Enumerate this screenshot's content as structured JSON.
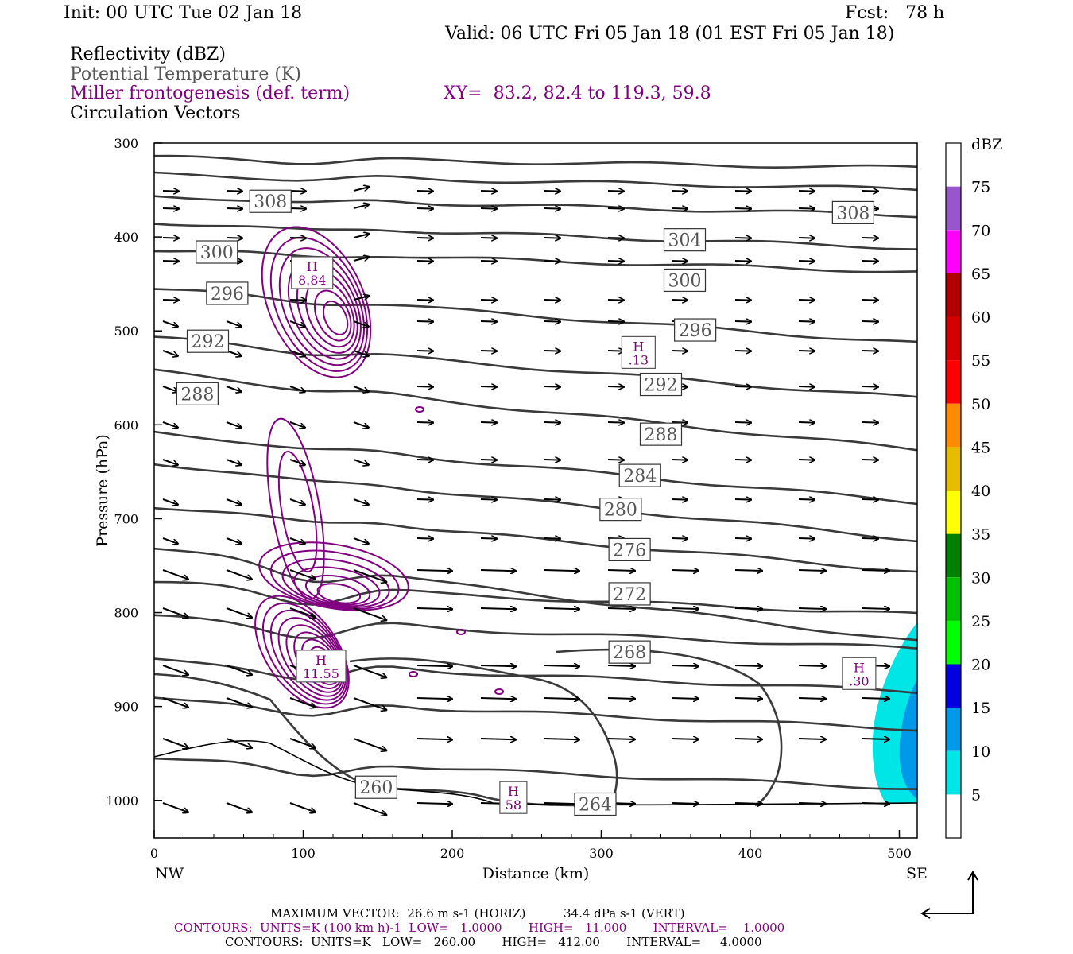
{
  "header": {
    "init": "Init: 00 UTC Tue 02 Jan 18",
    "fcst": "Fcst:   78 h",
    "valid": "Valid: 06 UTC Fri 05 Jan 18 (01 EST Fri 05 Jan 18)",
    "field1": "Reflectivity (dBZ)",
    "field2": "Potential Temperature (K)",
    "field3": "Miller frontogenesis (def. term)",
    "xy": "XY=  83.2, 82.4 to 119.3, 59.8",
    "field4": "Circulation Vectors"
  },
  "colors": {
    "theta": "#3a3a3a",
    "frontogenesis": "#800080",
    "vectors": "#000000"
  },
  "chart_data": {
    "type": "cross-section",
    "xlabel": "Distance (km)",
    "ylabel": "Pressure (hPa)",
    "xlim": [
      0,
      512
    ],
    "ylim": [
      1040,
      300
    ],
    "x_ticks": [
      0,
      100,
      200,
      300,
      400,
      500
    ],
    "y_ticks": [
      300,
      400,
      500,
      600,
      700,
      800,
      900,
      1000
    ],
    "x_end_labels": {
      "left": "NW",
      "right": "SE"
    },
    "theta_labels": [
      {
        "label": "308",
        "x": 78,
        "p": 362
      },
      {
        "label": "308",
        "x": 469,
        "p": 374
      },
      {
        "label": "304",
        "x": 356,
        "p": 403
      },
      {
        "label": "300",
        "x": 42,
        "p": 416
      },
      {
        "label": "300",
        "x": 356,
        "p": 446
      },
      {
        "label": "296",
        "x": 49,
        "p": 460
      },
      {
        "label": "296",
        "x": 363,
        "p": 499
      },
      {
        "label": "292",
        "x": 36,
        "p": 511
      },
      {
        "label": "292",
        "x": 340,
        "p": 557
      },
      {
        "label": "288",
        "x": 29,
        "p": 567
      },
      {
        "label": "288",
        "x": 340,
        "p": 610
      },
      {
        "label": "284",
        "x": 326,
        "p": 654
      },
      {
        "label": "280",
        "x": 313,
        "p": 690
      },
      {
        "label": "276",
        "x": 319,
        "p": 733
      },
      {
        "label": "272",
        "x": 319,
        "p": 780
      },
      {
        "label": "268",
        "x": 319,
        "p": 842
      },
      {
        "label": "264",
        "x": 296,
        "p": 1004
      },
      {
        "label": "260",
        "x": 149,
        "p": 986
      }
    ],
    "highs": [
      {
        "symbol": "H",
        "value": "8.84",
        "x": 106,
        "p": 438
      },
      {
        "symbol": "H",
        "value": ".13",
        "x": 325,
        "p": 523
      },
      {
        "symbol": "H",
        "value": "11.55",
        "x": 112,
        "p": 857
      },
      {
        "symbol": "H",
        "value": ".30",
        "x": 473,
        "p": 865
      },
      {
        "symbol": "H",
        "value": "58",
        "x": 241,
        "p": 997
      }
    ],
    "colorbar": {
      "unit": "dBZ",
      "levels": [
        5,
        10,
        15,
        20,
        25,
        30,
        35,
        40,
        45,
        50,
        55,
        60,
        65,
        70,
        75
      ],
      "colors": [
        "#ffffff",
        "#00e5e5",
        "#0098e8",
        "#0000e0",
        "#00ff00",
        "#00c000",
        "#008000",
        "#ffff00",
        "#e5bc00",
        "#ff8c00",
        "#ff0000",
        "#d40000",
        "#b00000",
        "#ff00ff",
        "#9955cc",
        "#ffffff"
      ]
    }
  },
  "footer": {
    "max_vector": "MAXIMUM VECTOR:  26.6 m s-1 (HORIZ)          34.4 dPa s-1 (VERT)",
    "contours_front": "CONTOURS:  UNITS=K (100 km h)-1  LOW=   1.0000       HIGH=   11.000       INTERVAL=    1.0000",
    "contours_theta": "CONTOURS:  UNITS=K   LOW=   260.00       HIGH=   412.00       INTERVAL=     4.0000"
  }
}
